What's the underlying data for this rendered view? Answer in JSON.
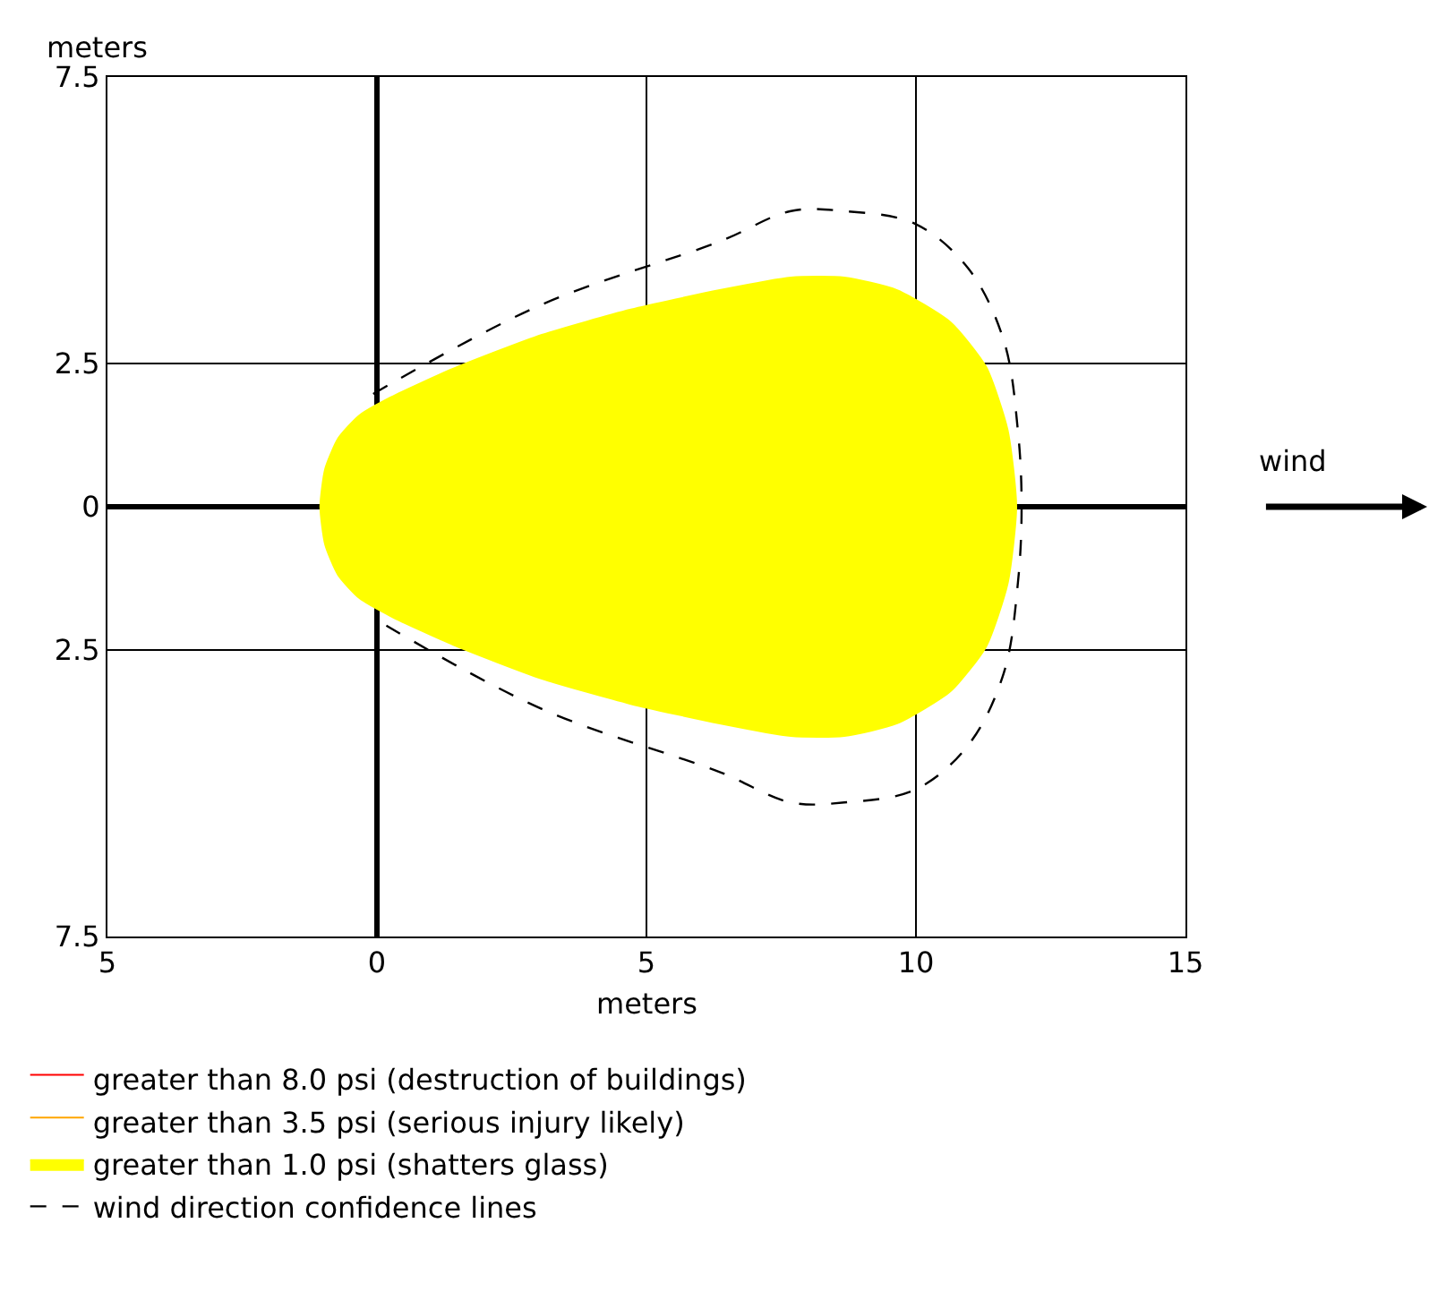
{
  "chart_data": {
    "type": "area",
    "xlabel": "meters",
    "ylabel": "meters",
    "xlim": [
      -5,
      15
    ],
    "ylim": [
      -7.5,
      7.5
    ],
    "xticks": [
      {
        "value": -5,
        "label": "5"
      },
      0,
      5,
      10,
      15
    ],
    "yticks": [
      {
        "value": -7.5,
        "label": "7.5"
      },
      {
        "value": -2.5,
        "label": "2.5"
      },
      0,
      2.5,
      7.5
    ],
    "grid": true,
    "legend": "bottom",
    "annotations": [
      "wind"
    ],
    "series": [
      {
        "name": "greater than 8.0 psi (destruction of buildings)",
        "color": "#ff0000"
      },
      {
        "name": "greater than 3.5 psi (serious injury likely)",
        "color": "#ffa500"
      },
      {
        "name": "greater than 1.0 psi (shatters glass)",
        "color": "#ffff00",
        "x": [
          -1.05,
          -0.96,
          -0.72,
          -0.33,
          0.26,
          1.42,
          3.06,
          4.71,
          6.36,
          7.68,
          8.67,
          9.65,
          10.64,
          11.3,
          11.7,
          11.86,
          11.7,
          11.3,
          10.64,
          9.65,
          8.67,
          7.68,
          6.36,
          4.71,
          3.06,
          1.42,
          0.26,
          -0.33,
          -0.72,
          -0.96,
          -1.05
        ],
        "values": [
          0,
          0.66,
          1.19,
          1.59,
          1.91,
          2.41,
          3.0,
          3.44,
          3.78,
          4.0,
          4.0,
          3.78,
          3.22,
          2.44,
          1.34,
          0,
          -1.34,
          -2.44,
          -3.22,
          -3.78,
          -4.0,
          -4.0,
          -3.78,
          -3.44,
          -3.0,
          -2.41,
          -1.91,
          -1.59,
          -1.19,
          -0.66,
          0
        ]
      },
      {
        "name": "wind direction confidence lines",
        "color": "#000000",
        "type": "line",
        "line_style": "dashed",
        "x": [
          -0.07,
          3.06,
          6.36,
          7.68,
          8.67,
          9.98,
          10.97,
          11.63,
          11.89,
          11.96,
          11.89,
          11.63,
          10.97,
          9.98,
          8.67,
          7.68,
          6.36,
          3.06,
          -0.07
        ],
        "values": [
          1.97,
          3.53,
          4.63,
          5.16,
          5.16,
          4.94,
          4.16,
          2.9,
          1.34,
          0,
          -1.34,
          -2.9,
          -4.16,
          -4.94,
          -5.16,
          -5.16,
          -4.63,
          -3.53,
          -1.94
        ]
      }
    ]
  }
}
